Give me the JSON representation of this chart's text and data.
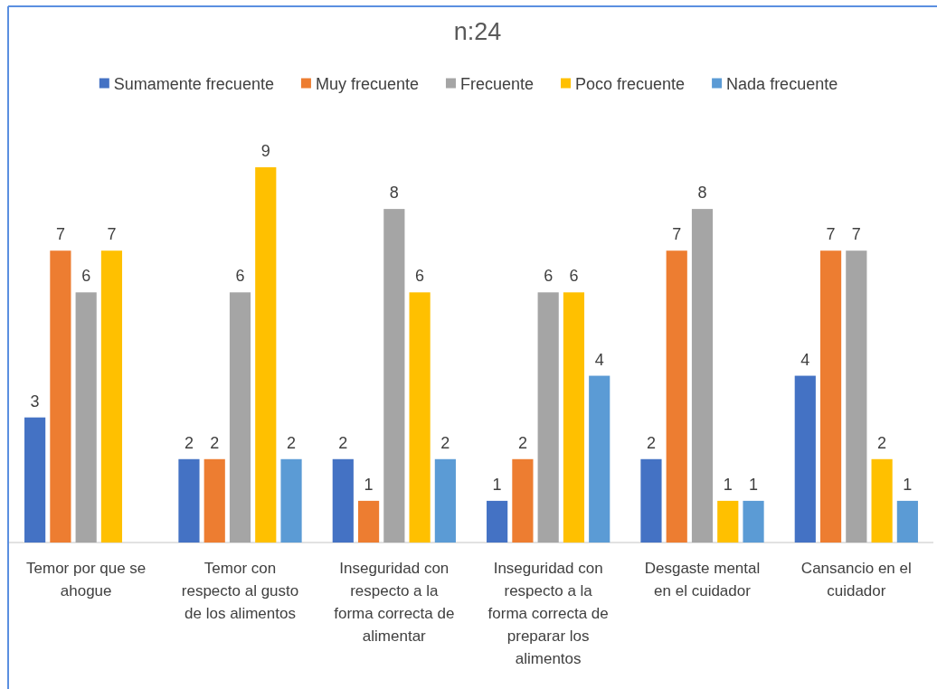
{
  "chart_data": {
    "type": "bar",
    "title": "n:24",
    "categories": [
      "Temor por que se ahogue",
      "Temor con respecto al gusto de los alimentos",
      "Inseguridad con respecto a la forma correcta de alimentar",
      "Inseguridad con respecto a la forma correcta de preparar los alimentos",
      "Desgaste mental en el cuidador",
      "Cansancio en el cuidador"
    ],
    "series": [
      {
        "name": "Sumamente frecuente",
        "color": "#4472c4",
        "values": [
          3,
          2,
          2,
          1,
          2,
          4
        ]
      },
      {
        "name": "Muy frecuente",
        "color": "#ed7d31",
        "values": [
          7,
          2,
          1,
          2,
          7,
          7
        ]
      },
      {
        "name": "Frecuente",
        "color": "#a5a5a5",
        "values": [
          6,
          6,
          8,
          6,
          8,
          7
        ]
      },
      {
        "name": "Poco frecuente",
        "color": "#ffc000",
        "values": [
          7,
          9,
          6,
          6,
          1,
          2
        ]
      },
      {
        "name": "Nada frecuente",
        "color": "#5b9bd5",
        "values": [
          null,
          2,
          2,
          4,
          1,
          1
        ]
      }
    ],
    "data_labels": true,
    "legend": "top",
    "tick_labels": "x"
  }
}
